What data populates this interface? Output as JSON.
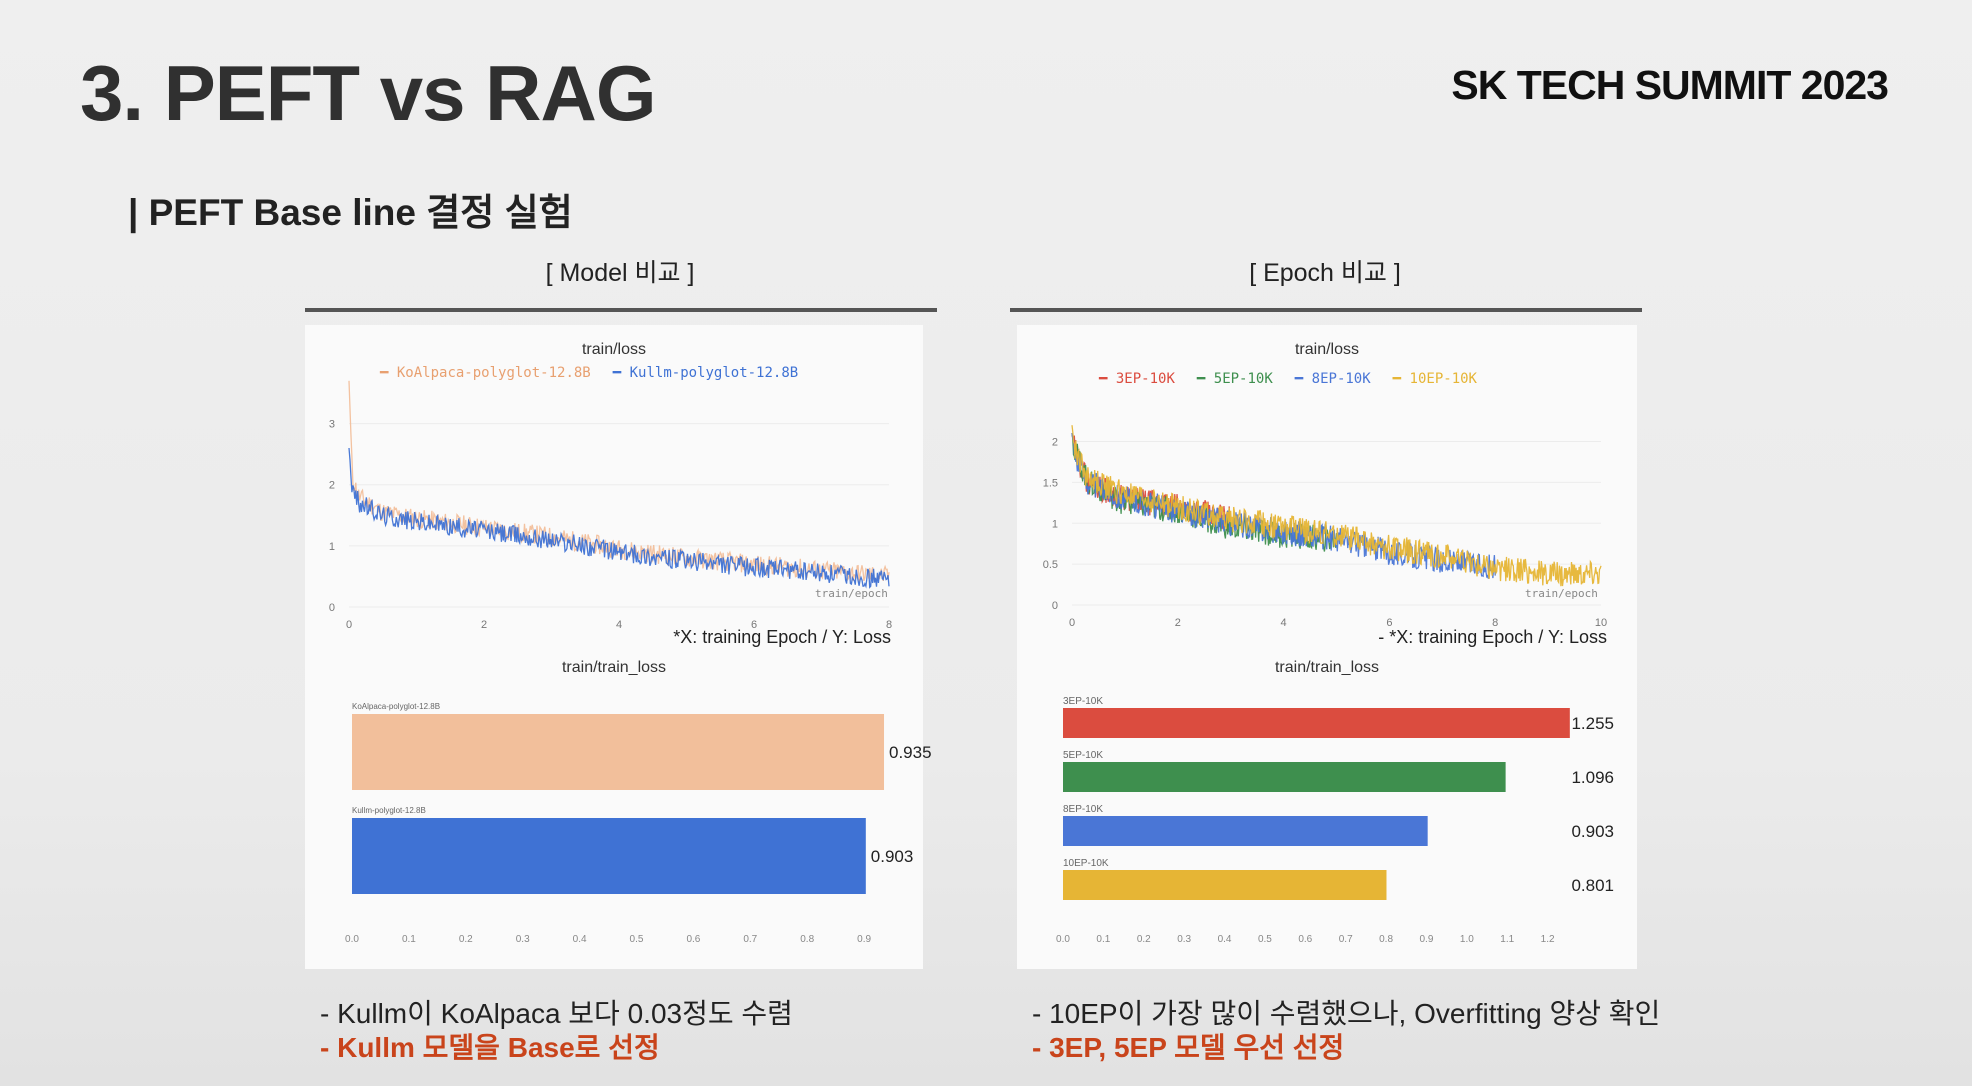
{
  "slide": {
    "title": "3. PEFT vs RAG",
    "brand": "SK TECH SUMMIT 2023",
    "subtitle": "| PEFT Base line 결정 실험"
  },
  "colors": {
    "koalpaca": "#f2bf9b",
    "kullm": "#3f72d4",
    "ep3": "#db4c3f",
    "ep5": "#3e8f4e",
    "ep8": "#4a76d6",
    "ep10": "#e6b535",
    "highlight": "#c9441b"
  },
  "left": {
    "section_title": "[ Model 비교 ]",
    "line_chart_title": "train/loss",
    "legend": [
      {
        "name": "KoAlpaca-polyglot-12.8B",
        "color": "#e8a070"
      },
      {
        "name": "Kullm-polyglot-12.8B",
        "color": "#3f72d4"
      }
    ],
    "axis_note": "train/epoch",
    "caption": "*X: training Epoch / Y: Loss",
    "bar_chart_title": "train/train_loss",
    "bullets": [
      "-  Kullm이 KoAlpaca 보다 0.03정도 수렴",
      "-  Kullm 모델을 Base로 선정"
    ]
  },
  "right": {
    "section_title": "[ Epoch 비교 ]",
    "line_chart_title": "train/loss",
    "legend": [
      {
        "name": "3EP-10K",
        "color": "#db4c3f"
      },
      {
        "name": "5EP-10K",
        "color": "#3e8f4e"
      },
      {
        "name": "8EP-10K",
        "color": "#4a76d6"
      },
      {
        "name": "10EP-10K",
        "color": "#e6b535"
      }
    ],
    "axis_note": "train/epoch",
    "caption": "-   *X: training Epoch / Y: Loss",
    "bar_chart_title": "train/train_loss",
    "bullets": [
      "-  10EP이 가장 많이 수렴했으나, Overfitting 양상 확인",
      "-  3EP, 5EP 모델 우선 선정"
    ]
  },
  "chart_data": [
    {
      "type": "line",
      "title": "train/loss",
      "xlabel": "train/epoch",
      "xlim": [
        0,
        8
      ],
      "ylim": [
        0,
        3.5
      ],
      "xticks": [
        0,
        2,
        4,
        6,
        8
      ],
      "yticks": [
        0,
        1,
        2,
        3
      ],
      "legend_position": "top",
      "series": [
        {
          "name": "KoAlpaca-polyglot-12.8B",
          "x": [
            0,
            0.05,
            0.15,
            0.5,
            1,
            2,
            3,
            4,
            5,
            6,
            7,
            8
          ],
          "y": [
            3.7,
            2.1,
            1.8,
            1.55,
            1.45,
            1.3,
            1.15,
            0.95,
            0.8,
            0.7,
            0.6,
            0.5
          ]
        },
        {
          "name": "Kullm-polyglot-12.8B",
          "x": [
            0,
            0.05,
            0.15,
            0.5,
            1,
            2,
            3,
            4,
            5,
            6,
            7,
            8
          ],
          "y": [
            2.6,
            1.9,
            1.7,
            1.5,
            1.4,
            1.25,
            1.1,
            0.9,
            0.75,
            0.65,
            0.55,
            0.45
          ]
        }
      ]
    },
    {
      "type": "bar",
      "title": "train/train_loss",
      "orientation": "horizontal",
      "categories": [
        "KoAlpaca-polyglot-12.8B",
        "Kullm-polyglot-12.8B"
      ],
      "values": [
        0.935,
        0.903
      ],
      "xlim": [
        0,
        1.0
      ],
      "xticks": [
        "0.0",
        "0.1",
        "0.2",
        "0.3",
        "0.4",
        "0.5",
        "0.6",
        "0.7",
        "0.8",
        "0.9"
      ]
    },
    {
      "type": "line",
      "title": "train/loss",
      "xlabel": "train/epoch",
      "xlim": [
        0,
        10
      ],
      "ylim": [
        0,
        2.3
      ],
      "xticks": [
        0,
        2,
        4,
        6,
        8,
        10
      ],
      "yticks": [
        0,
        0.5,
        1,
        1.5,
        2
      ],
      "legend_position": "top",
      "series": [
        {
          "name": "3EP-10K",
          "x": [
            0,
            0.05,
            0.3,
            1,
            2,
            3
          ],
          "y": [
            2.1,
            1.9,
            1.5,
            1.3,
            1.2,
            1.05
          ]
        },
        {
          "name": "5EP-10K",
          "x": [
            0,
            0.05,
            0.3,
            1,
            2,
            3,
            4,
            5
          ],
          "y": [
            2.1,
            1.9,
            1.5,
            1.25,
            1.15,
            0.95,
            0.85,
            0.8
          ]
        },
        {
          "name": "8EP-10K",
          "x": [
            0,
            0.05,
            0.3,
            1,
            2,
            3,
            4,
            5,
            6,
            7,
            8
          ],
          "y": [
            2.1,
            1.85,
            1.5,
            1.3,
            1.15,
            1.0,
            0.9,
            0.8,
            0.65,
            0.55,
            0.45
          ]
        },
        {
          "name": "10EP-10K",
          "x": [
            0,
            0.05,
            0.3,
            1,
            2,
            3,
            4,
            5,
            6,
            7,
            8,
            9,
            10
          ],
          "y": [
            2.2,
            1.9,
            1.55,
            1.35,
            1.2,
            1.05,
            0.95,
            0.85,
            0.7,
            0.6,
            0.45,
            0.38,
            0.4
          ]
        }
      ]
    },
    {
      "type": "bar",
      "title": "train/train_loss",
      "orientation": "horizontal",
      "categories": [
        "3EP-10K",
        "5EP-10K",
        "8EP-10K",
        "10EP-10K"
      ],
      "values": [
        1.255,
        1.096,
        0.903,
        0.801
      ],
      "xlim": [
        0,
        1.3
      ],
      "xticks": [
        "0.0",
        "0.1",
        "0.2",
        "0.3",
        "0.4",
        "0.5",
        "0.6",
        "0.7",
        "0.8",
        "0.9",
        "1.0",
        "1.1",
        "1.2"
      ]
    }
  ]
}
